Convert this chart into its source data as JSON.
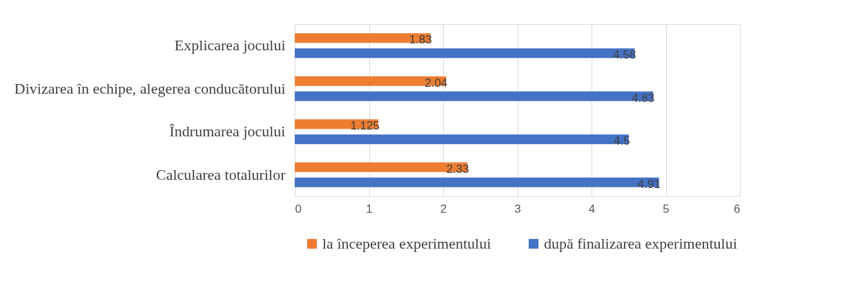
{
  "chart_data": {
    "type": "bar",
    "orientation": "horizontal",
    "categories": [
      "Explicarea jocului",
      "Divizarea în echipe, alegerea conducătorului",
      "Îndrumarea jocului",
      "Calcularea totalurilor"
    ],
    "series": [
      {
        "name": "la începerea experimentului",
        "color": "#ed7d31",
        "values": [
          1.83,
          2.04,
          1.125,
          2.33
        ]
      },
      {
        "name": "după finalizarea experimentului",
        "color": "#4472c4",
        "values": [
          4.58,
          4.83,
          4.5,
          4.91
        ]
      }
    ],
    "xlim": [
      0,
      6
    ],
    "xticks": [
      0,
      1,
      2,
      3,
      4,
      5,
      6
    ],
    "grid": "x",
    "legend": "bottom",
    "data_labels": true
  }
}
